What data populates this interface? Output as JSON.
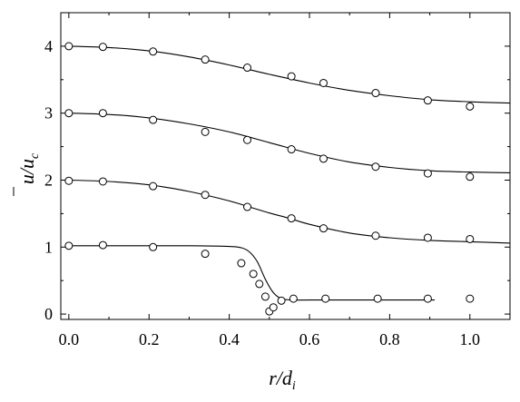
{
  "chart_data": {
    "type": "scatter",
    "title": "",
    "xlabel": {
      "main": "r/d",
      "sub": "i"
    },
    "ylabel": {
      "main": "u/u",
      "sub": "c",
      "overbar": true
    },
    "xlim": [
      -0.02,
      1.1
    ],
    "ylim": [
      -0.08,
      4.5
    ],
    "xticks": [
      0.0,
      0.2,
      0.4,
      0.6,
      0.8,
      1.0
    ],
    "xtick_labels": [
      "0.0",
      "0.2",
      "0.4",
      "0.6",
      "0.8",
      "1.0"
    ],
    "yticks": [
      0,
      1,
      2,
      3,
      4
    ],
    "ytick_labels": [
      "0",
      "1",
      "2",
      "3",
      "4"
    ],
    "grid": false,
    "legend": "none",
    "marker": "open-circle",
    "series": [
      {
        "points": {
          "x": [
            0.0,
            0.085,
            0.21,
            0.34,
            0.43,
            0.46,
            0.475,
            0.49,
            0.5,
            0.51,
            0.53,
            0.56,
            0.64,
            0.77,
            0.895,
            1.0
          ],
          "y": [
            1.02,
            1.03,
            1.0,
            0.9,
            0.76,
            0.6,
            0.45,
            0.26,
            0.04,
            0.1,
            0.2,
            0.23,
            0.23,
            0.23,
            0.23,
            0.23
          ]
        },
        "curve": {
          "x": [
            0.0,
            0.1,
            0.2,
            0.3,
            0.4,
            0.43,
            0.45,
            0.47,
            0.49,
            0.51,
            0.53,
            0.56,
            0.6,
            0.7,
            0.8,
            0.9,
            0.91
          ],
          "y": [
            1.02,
            1.02,
            1.02,
            1.02,
            1.01,
            0.99,
            0.93,
            0.78,
            0.52,
            0.32,
            0.23,
            0.21,
            0.21,
            0.21,
            0.21,
            0.21,
            0.21
          ]
        }
      },
      {
        "points": {
          "x": [
            0.0,
            0.085,
            0.21,
            0.34,
            0.445,
            0.555,
            0.635,
            0.765,
            0.895,
            1.0
          ],
          "y": [
            1.99,
            1.98,
            1.91,
            1.78,
            1.6,
            1.43,
            1.28,
            1.17,
            1.14,
            1.12
          ]
        },
        "curve": {
          "x": [
            0.0,
            0.1,
            0.2,
            0.3,
            0.4,
            0.45,
            0.5,
            0.55,
            0.6,
            0.7,
            0.8,
            0.9,
            1.0,
            1.1
          ],
          "y": [
            2.0,
            1.98,
            1.93,
            1.83,
            1.69,
            1.6,
            1.51,
            1.43,
            1.34,
            1.21,
            1.14,
            1.1,
            1.08,
            1.06
          ]
        }
      },
      {
        "points": {
          "x": [
            0.0,
            0.085,
            0.21,
            0.34,
            0.445,
            0.555,
            0.635,
            0.765,
            0.895,
            1.0
          ],
          "y": [
            3.0,
            3.0,
            2.9,
            2.72,
            2.6,
            2.46,
            2.32,
            2.2,
            2.1,
            2.05
          ]
        },
        "curve": {
          "x": [
            0.0,
            0.1,
            0.2,
            0.3,
            0.4,
            0.5,
            0.6,
            0.7,
            0.8,
            0.9,
            1.0,
            1.1
          ],
          "y": [
            3.0,
            2.98,
            2.93,
            2.84,
            2.72,
            2.56,
            2.4,
            2.27,
            2.19,
            2.14,
            2.12,
            2.11
          ]
        }
      },
      {
        "points": {
          "x": [
            0.0,
            0.085,
            0.21,
            0.34,
            0.445,
            0.555,
            0.635,
            0.765,
            0.895,
            1.0
          ],
          "y": [
            4.0,
            3.99,
            3.92,
            3.8,
            3.68,
            3.55,
            3.45,
            3.3,
            3.19,
            3.1
          ]
        },
        "curve": {
          "x": [
            0.0,
            0.1,
            0.2,
            0.3,
            0.4,
            0.5,
            0.6,
            0.7,
            0.8,
            0.9,
            1.0,
            1.1
          ],
          "y": [
            4.0,
            3.98,
            3.93,
            3.84,
            3.72,
            3.58,
            3.45,
            3.34,
            3.26,
            3.2,
            3.17,
            3.15
          ]
        }
      }
    ]
  }
}
